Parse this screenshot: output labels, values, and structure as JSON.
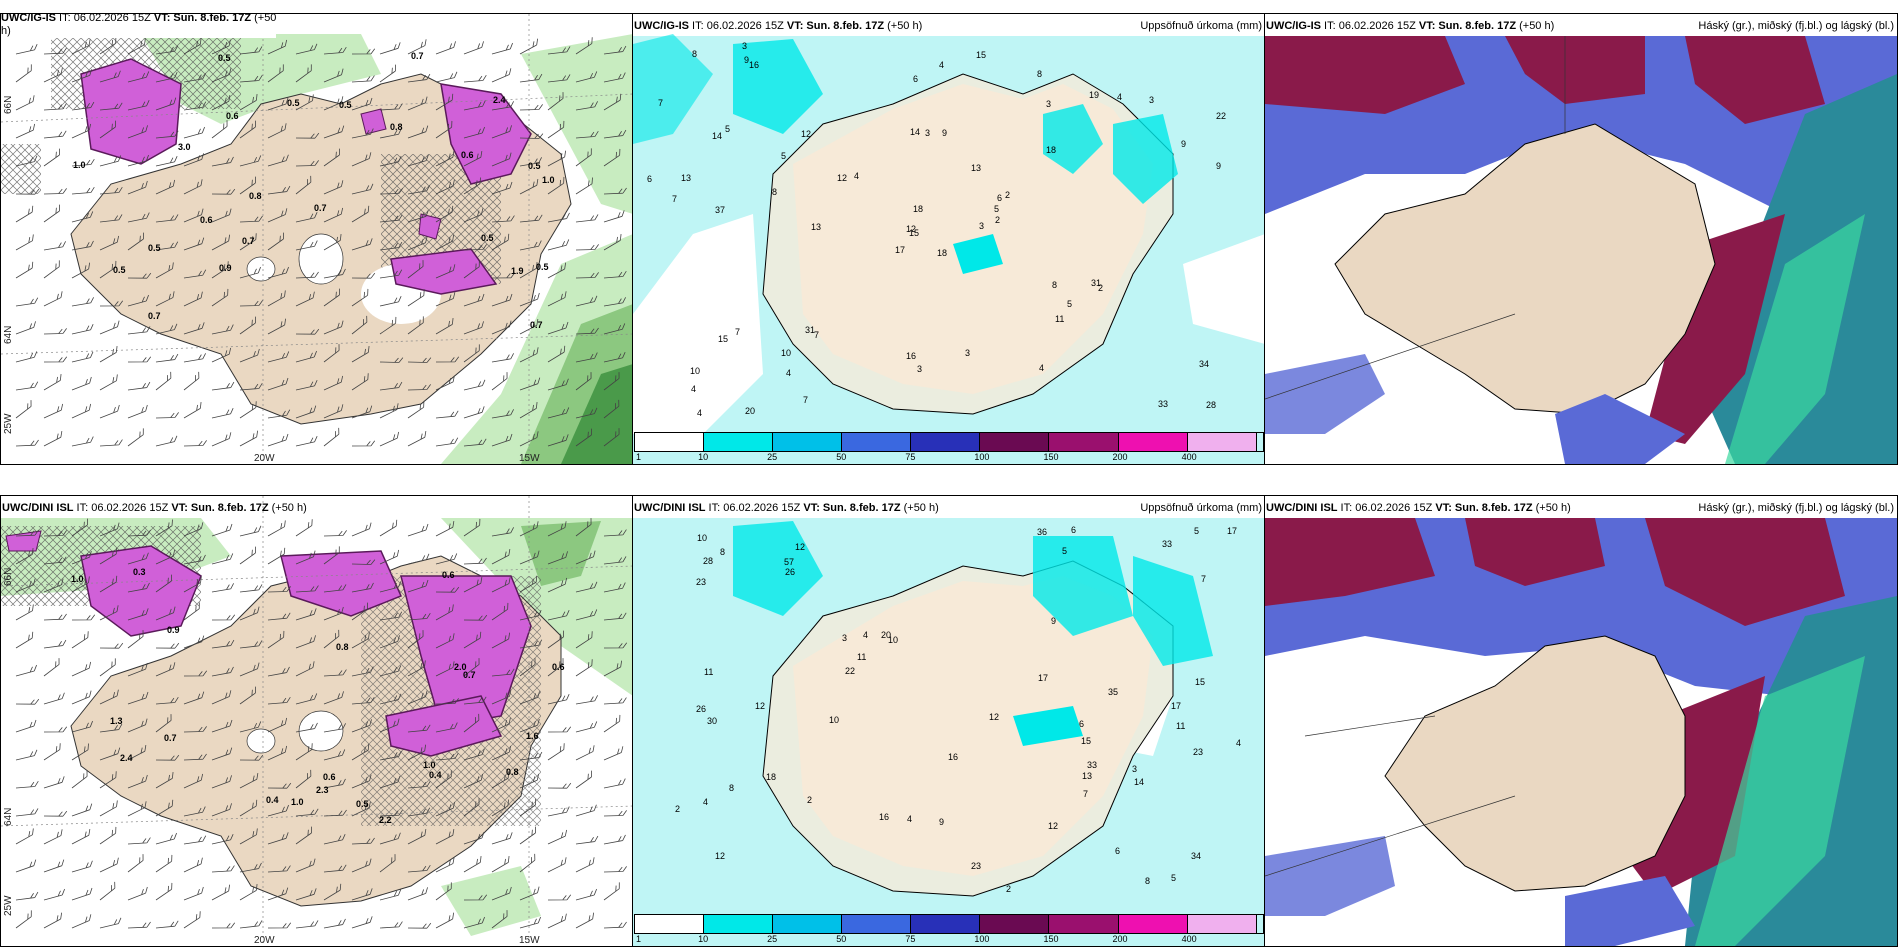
{
  "rows": [
    {
      "left": {
        "title_bold": "UWC/IG-IS",
        "title_rest": " IT: 06.02.2026 15Z ",
        "title_vt": "VT: Sun. 8.feb. 17Z",
        "title_tail": " (+50",
        "title_h": "h)"
      },
      "mid": {
        "title_bold": "UWC/IG-IS",
        "title_rest": " IT: 06.02.2026 15Z ",
        "title_vt": "VT: Sun. 8.feb. 17Z",
        "title_tail": " (+50 h)",
        "right": "Uppsöfnuð úrkoma (mm)"
      },
      "right": {
        "title_bold": "UWC/IG-IS",
        "title_rest": " IT: 06.02.2026 15Z ",
        "title_vt": "VT: Sun. 8.feb. 17Z",
        "title_tail": " (+50 h)",
        "right": "Háský (gr.), miðský (fj.bl.) og lágský (bl.)"
      }
    },
    {
      "left": {
        "title_bold": "UWC/DINI ISL",
        "title_rest": " IT: 06.02.2026 15Z ",
        "title_vt": "VT: Sun. 8.feb. 17Z",
        "title_tail": " (+50 h)"
      },
      "mid": {
        "title_bold": "UWC/DINI ISL",
        "title_rest": " IT: 06.02.2026 15Z ",
        "title_vt": "VT: Sun. 8.feb. 17Z",
        "title_tail": " (+50 h)",
        "right": "Uppsöfnuð úrkoma (mm)"
      },
      "right": {
        "title_bold": "UWC/DINI ISL",
        "title_rest": " IT: 06.02.2026 15Z ",
        "title_vt": "VT: Sun. 8.feb. 17Z",
        "title_tail": " (+50 h)",
        "right": "Háský (gr.), miðský (fj.bl.) og lágský (bl.)"
      }
    }
  ],
  "axis_labels": {
    "lon1": "20W",
    "lon2": "15W",
    "lat1": "66N",
    "lat2": "64N",
    "lon3": "25W"
  },
  "precip_legend": {
    "ticks": [
      "1",
      "10",
      "25",
      "50",
      "75",
      "100",
      "150",
      "200",
      "400"
    ],
    "colors": [
      "#ffffff",
      "#00e8e8",
      "#00c0e8",
      "#3a68e0",
      "#2830b8",
      "#6a0a52",
      "#9a106e",
      "#ee10b0",
      "#f0b0ee"
    ]
  },
  "precip_values_top": [
    "18",
    "14",
    "15",
    "10",
    "6",
    "7",
    "8",
    "9",
    "3",
    "3",
    "16",
    "28",
    "37",
    "22",
    "17",
    "18",
    "20",
    "14",
    "13",
    "7",
    "4",
    "4",
    "4",
    "3",
    "2",
    "2",
    "5",
    "6",
    "7",
    "8",
    "9",
    "12",
    "16",
    "18",
    "12",
    "19",
    "31",
    "33",
    "34",
    "31",
    "15",
    "12",
    "8",
    "11",
    "7",
    "6",
    "5",
    "4",
    "3",
    "2",
    "15",
    "9",
    "7",
    "5",
    "4",
    "10",
    "9",
    "8",
    "3",
    "3",
    "4",
    "13",
    "13",
    "5",
    "4",
    "3"
  ],
  "precip_values_bottom": [
    "15",
    "11",
    "12",
    "12",
    "10",
    "6",
    "4",
    "5",
    "3",
    "2",
    "23",
    "26",
    "28",
    "34",
    "16",
    "15",
    "16",
    "12",
    "20",
    "18",
    "17",
    "33",
    "22",
    "23",
    "36",
    "57",
    "33",
    "30",
    "26",
    "35",
    "23",
    "12",
    "11",
    "10",
    "17",
    "14",
    "13",
    "12",
    "9",
    "8",
    "7",
    "6",
    "5",
    "4",
    "3",
    "2",
    "2",
    "8",
    "17",
    "11",
    "4",
    "4",
    "5",
    "6",
    "7",
    "8",
    "9",
    "10"
  ],
  "wind_values_top": [
    "0.6",
    "0.5",
    "0.8",
    "1.0",
    "0.8",
    "0.5",
    "0.7",
    "0.7",
    "1.9",
    "2.4",
    "3.0",
    "0.5",
    "0.6",
    "0.9",
    "0.5",
    "0.7",
    "0.6",
    "1.0",
    "0.5",
    "0.5",
    "0.7",
    "0.5",
    "0.7",
    "0.5"
  ],
  "wind_values_bottom": [
    "0.4",
    "0.6",
    "0.8",
    "1.0",
    "0.6",
    "2.4",
    "2.3",
    "1.3",
    "2.0",
    "0.9",
    "0.7",
    "0.8",
    "1.0",
    "2.2",
    "0.6",
    "0.5",
    "1.0",
    "0.4",
    "1.6",
    "0.7",
    "0.3"
  ]
}
